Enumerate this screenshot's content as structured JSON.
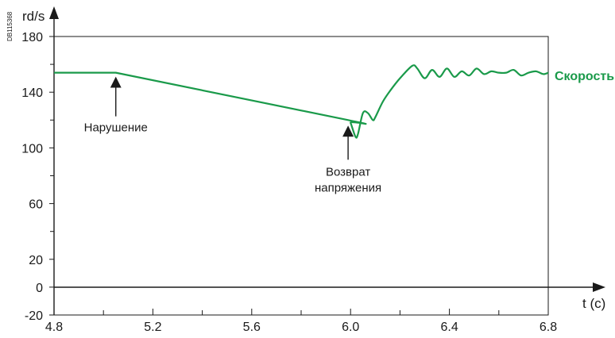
{
  "document_code": "DB115368",
  "chart_data": {
    "type": "line",
    "xlabel": "t (c)",
    "ylabel": "rd/s",
    "xlim": [
      4.8,
      6.8
    ],
    "ylim": [
      -20,
      180
    ],
    "x_ticks": [
      "4.8",
      "5.2",
      "5.6",
      "6.0",
      "6.4",
      "6.8"
    ],
    "y_ticks": [
      "180",
      "140",
      "100",
      "60",
      "20",
      "0",
      "-20"
    ],
    "grid": false,
    "series": [
      {
        "name": "Скорость",
        "color": "#1a9a4a",
        "x": [
          4.8,
          5.05,
          5.99,
          6.0,
          6.02,
          6.03,
          6.05,
          6.07,
          6.09,
          6.1,
          6.13,
          6.16,
          6.2,
          6.25,
          6.27,
          6.3,
          6.33,
          6.36,
          6.39,
          6.42,
          6.45,
          6.48,
          6.51,
          6.54,
          6.57,
          6.6,
          6.63,
          6.66,
          6.69,
          6.72,
          6.75,
          6.78,
          6.8
        ],
        "y": [
          154,
          154,
          120,
          118,
          108,
          110,
          125,
          125,
          120,
          122,
          133,
          141,
          150,
          159,
          157,
          150,
          156,
          151,
          157,
          151,
          155,
          152,
          157,
          153,
          155,
          154,
          154,
          156,
          152,
          154,
          155,
          153,
          154
        ]
      }
    ],
    "annotations": [
      {
        "text": "Нарушение",
        "x": 5.05,
        "y": 154
      },
      {
        "lines": [
          "Возврат",
          "напряжения"
        ],
        "x": 5.99,
        "y": 120
      }
    ]
  }
}
